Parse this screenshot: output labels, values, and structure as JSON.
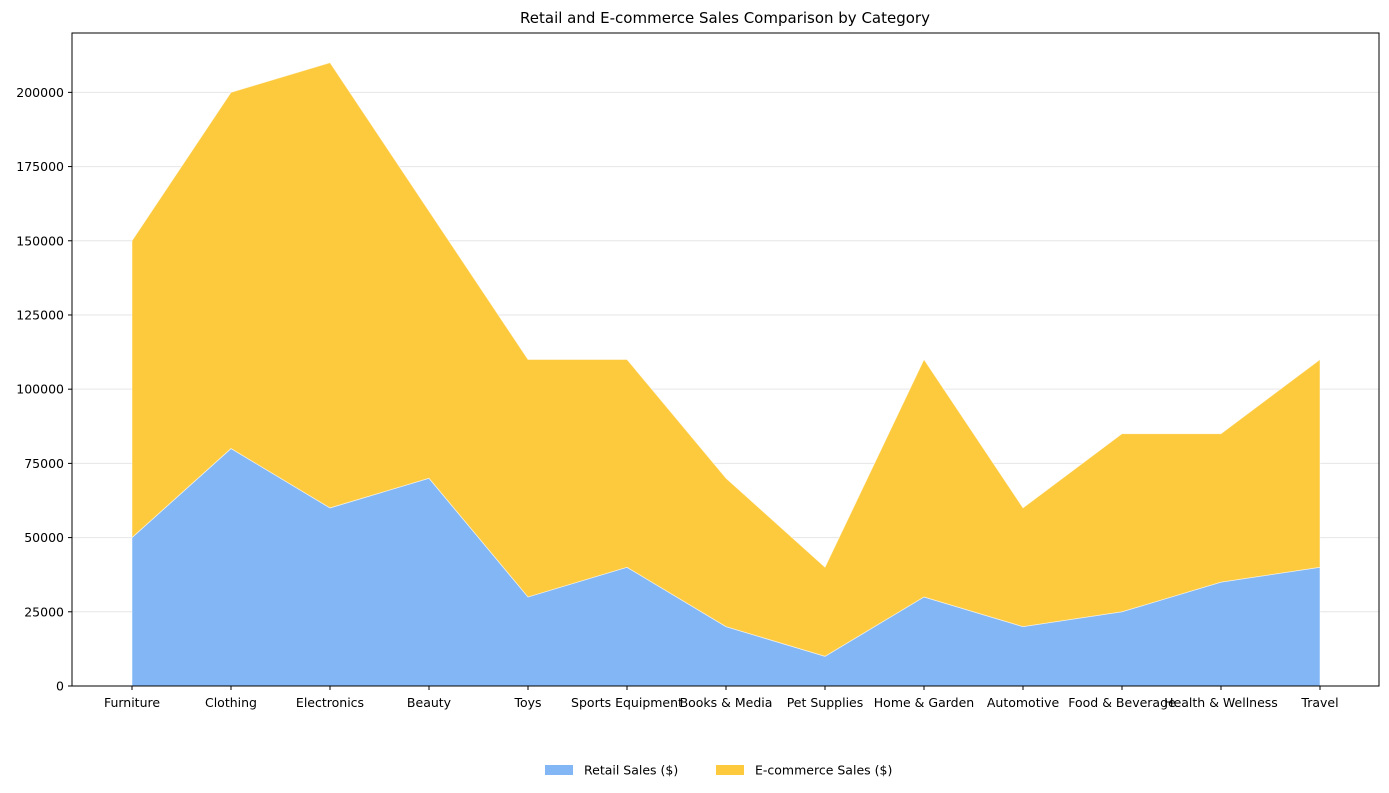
{
  "chart_data": {
    "type": "area",
    "stacked": true,
    "title": "Retail and E-commerce Sales Comparison by Category",
    "xlabel": "",
    "ylabel": "",
    "categories": [
      "Furniture",
      "Clothing",
      "Electronics",
      "Beauty",
      "Toys",
      "Sports Equipment",
      "Books & Media",
      "Pet Supplies",
      "Home & Garden",
      "Automotive",
      "Food & Beverage",
      "Health & Wellness",
      "Travel"
    ],
    "series": [
      {
        "name": "Retail Sales ($)",
        "color": "#82b6f5",
        "values": [
          50000,
          80000,
          60000,
          70000,
          30000,
          40000,
          20000,
          10000,
          30000,
          20000,
          25000,
          35000,
          40000
        ]
      },
      {
        "name": "E-commerce Sales ($)",
        "color": "#fdc93d",
        "values": [
          100000,
          120000,
          150000,
          90000,
          80000,
          70000,
          50000,
          30000,
          80000,
          40000,
          60000,
          50000,
          70000
        ]
      }
    ],
    "ylim": [
      0,
      220000
    ],
    "yticks": [
      0,
      25000,
      50000,
      75000,
      100000,
      125000,
      150000,
      175000,
      200000
    ],
    "ytick_labels": [
      "0",
      "25000",
      "50000",
      "75000",
      "100000",
      "125000",
      "150000",
      "175000",
      "200000"
    ],
    "grid": {
      "y": true,
      "x": false
    },
    "legend_position": "bottom-center"
  }
}
